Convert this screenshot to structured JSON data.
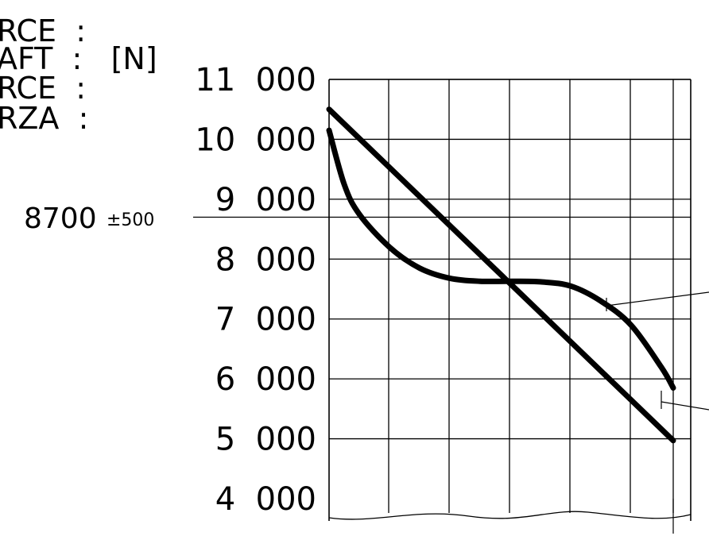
{
  "labels": {
    "lines": [
      "RCE  :",
      "AFT  :   [N]",
      "RCE  :",
      "RZA  :"
    ]
  },
  "tolerance": {
    "value": "8700",
    "sub": "±500"
  },
  "chart_data": {
    "type": "line",
    "title": "",
    "xlabel": "",
    "ylabel": "[N]",
    "ylim": [
      4000,
      11000
    ],
    "grid": true,
    "yticks": [
      11000,
      10000,
      9000,
      8000,
      7000,
      6000,
      5000,
      4000
    ],
    "ytick_labels": [
      "11  000",
      "10  000",
      "9  000",
      "8  000",
      "7  000",
      "6  000",
      "5  000",
      "4  000"
    ],
    "reference_line": 8700,
    "series": [
      {
        "x": [
          0,
          1,
          2,
          3,
          4,
          5,
          5.7
        ],
        "values": [
          10500,
          9530,
          8560,
          7590,
          6620,
          5650,
          4970
        ]
      },
      {
        "x": [
          0,
          0.25,
          0.5,
          1,
          1.5,
          2,
          2.5,
          3,
          3.5,
          4,
          4.5,
          5,
          5.5,
          5.7
        ],
        "values": [
          10150,
          9250,
          8750,
          8200,
          7850,
          7680,
          7630,
          7630,
          7620,
          7550,
          7300,
          6900,
          6200,
          5850
        ]
      }
    ]
  }
}
